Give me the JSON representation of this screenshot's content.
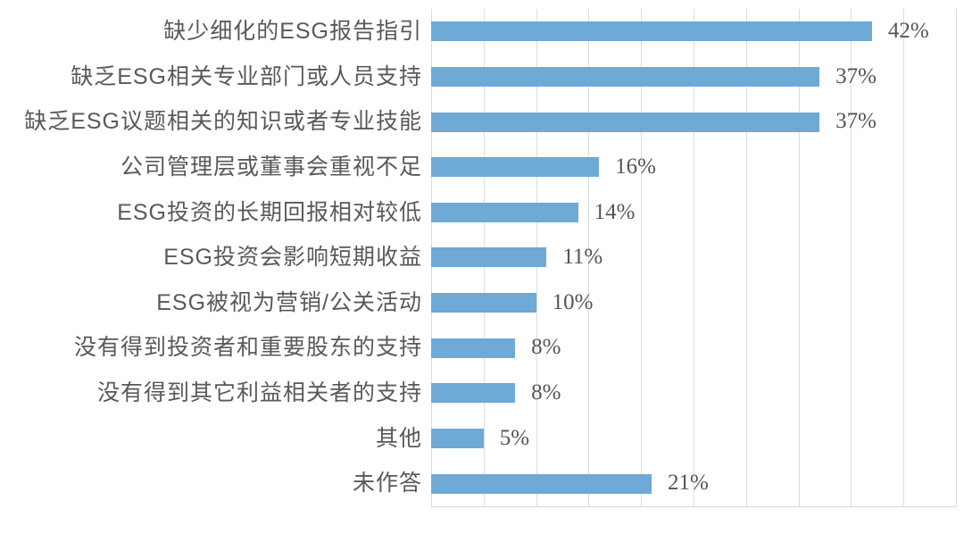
{
  "chart_data": {
    "type": "bar",
    "orientation": "horizontal",
    "title": "",
    "xlabel": "",
    "ylabel": "",
    "categories": [
      "缺少细化的ESG报告指引",
      "缺乏ESG相关专业部门或人员支持",
      "缺乏ESG议题相关的知识或者专业技能",
      "公司管理层或董事会重视不足",
      "ESG投资的长期回报相对较低",
      "ESG投资会影响短期收益",
      "ESG被视为营销/公关活动",
      "没有得到投资者和重要股东的支持",
      "没有得到其它利益相关者的支持",
      "其他",
      "未作答"
    ],
    "values": [
      42,
      37,
      37,
      16,
      14,
      11,
      10,
      8,
      8,
      5,
      21
    ],
    "value_labels": [
      "42%",
      "37%",
      "37%",
      "16%",
      "14%",
      "11%",
      "10%",
      "8%",
      "8%",
      "5%",
      "21%"
    ],
    "xlim": [
      0,
      50
    ],
    "tick_interval": 5,
    "grid": true,
    "legend": false,
    "axis_tick_labels_visible": false,
    "colors": {
      "bar": "#6FA9D6",
      "gridline": "#DCDCDC",
      "axis_line": "#D6D6D6",
      "label_text": "#595959",
      "value_text": "#545454",
      "background": "#FFFFFF"
    }
  }
}
